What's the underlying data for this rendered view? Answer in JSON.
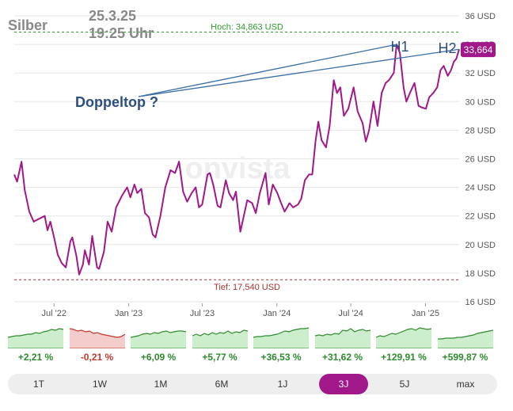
{
  "chart_data": {
    "type": "line",
    "title": "Silber",
    "date_line1": "25.3.25",
    "date_line2": "19:25 Uhr",
    "ylim": [
      16,
      36
    ],
    "y_ticks": [
      16,
      18,
      20,
      22,
      24,
      26,
      28,
      30,
      32,
      34,
      36
    ],
    "y_tick_labels": [
      "16 USD",
      "18 USD",
      "20 USD",
      "22 USD",
      "24 USD",
      "26 USD",
      "28 USD",
      "30 USD",
      "32 USD",
      "34 USD",
      "36 USD"
    ],
    "x_ticks": [
      "2022-07-01",
      "2023-01-01",
      "2023-07-01",
      "2024-01-01",
      "2024-07-01",
      "2025-01-01"
    ],
    "x_tick_labels": [
      "Jul '22",
      "Jan '23",
      "Jul '23",
      "Jan '24",
      "Jul '24",
      "Jan '25"
    ],
    "xlim": [
      "2022-03-25",
      "2025-03-25"
    ],
    "high_label": "Hoch: 34,863 USD",
    "high_value": 34.863,
    "low_label": "Tief: 17,540 USD",
    "low_value": 17.54,
    "last_value": 33.664,
    "last_value_label": "33,664",
    "watermark": "onvista",
    "annotations": [
      {
        "label": "H1",
        "x": "2024-10-22",
        "y": 34.0
      },
      {
        "label": "H2",
        "x": "2025-03-25",
        "y": 33.66
      },
      {
        "label": "Doppeltop ?",
        "x": "2023-01-20",
        "y": 30.5
      }
    ],
    "series": [
      {
        "color": "#a0188a",
        "points": [
          [
            "2022-03-25",
            24.9
          ],
          [
            "2022-04-01",
            24.4
          ],
          [
            "2022-04-12",
            25.8
          ],
          [
            "2022-04-20",
            23.8
          ],
          [
            "2022-05-01",
            22.3
          ],
          [
            "2022-05-12",
            21.6
          ],
          [
            "2022-05-25",
            21.8
          ],
          [
            "2022-06-08",
            22.0
          ],
          [
            "2022-06-15",
            21.0
          ],
          [
            "2022-06-22",
            21.6
          ],
          [
            "2022-07-01",
            20.5
          ],
          [
            "2022-07-10",
            19.3
          ],
          [
            "2022-07-20",
            18.7
          ],
          [
            "2022-07-30",
            18.4
          ],
          [
            "2022-08-10",
            20.2
          ],
          [
            "2022-08-15",
            20.5
          ],
          [
            "2022-08-25",
            19.2
          ],
          [
            "2022-09-01",
            17.9
          ],
          [
            "2022-09-10",
            18.6
          ],
          [
            "2022-09-15",
            19.6
          ],
          [
            "2022-09-25",
            18.6
          ],
          [
            "2022-10-03",
            20.6
          ],
          [
            "2022-10-15",
            18.4
          ],
          [
            "2022-10-20",
            18.3
          ],
          [
            "2022-11-01",
            19.5
          ],
          [
            "2022-11-10",
            21.6
          ],
          [
            "2022-11-20",
            20.9
          ],
          [
            "2022-12-01",
            22.6
          ],
          [
            "2022-12-15",
            23.4
          ],
          [
            "2022-12-28",
            24.0
          ],
          [
            "2023-01-05",
            23.3
          ],
          [
            "2023-01-15",
            24.2
          ],
          [
            "2023-01-22",
            23.6
          ],
          [
            "2023-02-01",
            23.9
          ],
          [
            "2023-02-10",
            22.2
          ],
          [
            "2023-02-20",
            21.9
          ],
          [
            "2023-03-01",
            20.7
          ],
          [
            "2023-03-08",
            20.5
          ],
          [
            "2023-03-20",
            22.0
          ],
          [
            "2023-04-01",
            24.0
          ],
          [
            "2023-04-14",
            25.2
          ],
          [
            "2023-04-25",
            25.0
          ],
          [
            "2023-05-05",
            25.8
          ],
          [
            "2023-05-15",
            23.7
          ],
          [
            "2023-05-25",
            23.0
          ],
          [
            "2023-06-05",
            23.6
          ],
          [
            "2023-06-15",
            24.0
          ],
          [
            "2023-06-23",
            22.6
          ],
          [
            "2023-07-01",
            22.8
          ],
          [
            "2023-07-14",
            24.9
          ],
          [
            "2023-07-20",
            25.0
          ],
          [
            "2023-07-28",
            24.2
          ],
          [
            "2023-08-08",
            22.7
          ],
          [
            "2023-08-15",
            22.6
          ],
          [
            "2023-08-28",
            24.5
          ],
          [
            "2023-09-05",
            23.6
          ],
          [
            "2023-09-15",
            23.1
          ],
          [
            "2023-09-22",
            23.7
          ],
          [
            "2023-10-03",
            20.9
          ],
          [
            "2023-10-10",
            21.8
          ],
          [
            "2023-10-20",
            23.1
          ],
          [
            "2023-11-01",
            22.9
          ],
          [
            "2023-11-10",
            22.2
          ],
          [
            "2023-11-20",
            23.6
          ],
          [
            "2023-12-04",
            25.0
          ],
          [
            "2023-12-12",
            22.8
          ],
          [
            "2023-12-22",
            24.2
          ],
          [
            "2024-01-02",
            23.6
          ],
          [
            "2024-01-10",
            23.0
          ],
          [
            "2024-01-20",
            22.3
          ],
          [
            "2024-02-01",
            22.9
          ],
          [
            "2024-02-10",
            22.6
          ],
          [
            "2024-02-22",
            22.8
          ],
          [
            "2024-03-01",
            23.2
          ],
          [
            "2024-03-10",
            24.5
          ],
          [
            "2024-03-20",
            24.9
          ],
          [
            "2024-03-28",
            24.9
          ],
          [
            "2024-04-05",
            27.2
          ],
          [
            "2024-04-12",
            28.6
          ],
          [
            "2024-04-20",
            27.3
          ],
          [
            "2024-05-01",
            26.8
          ],
          [
            "2024-05-10",
            28.3
          ],
          [
            "2024-05-20",
            31.5
          ],
          [
            "2024-05-28",
            30.6
          ],
          [
            "2024-06-05",
            31.0
          ],
          [
            "2024-06-14",
            29.0
          ],
          [
            "2024-06-25",
            29.5
          ],
          [
            "2024-07-08",
            31.0
          ],
          [
            "2024-07-18",
            29.3
          ],
          [
            "2024-07-30",
            28.5
          ],
          [
            "2024-08-07",
            27.2
          ],
          [
            "2024-08-15",
            28.0
          ],
          [
            "2024-08-26",
            30.0
          ],
          [
            "2024-09-05",
            28.3
          ],
          [
            "2024-09-15",
            30.6
          ],
          [
            "2024-09-25",
            31.3
          ],
          [
            "2024-10-03",
            31.5
          ],
          [
            "2024-10-15",
            32.0
          ],
          [
            "2024-10-22",
            34.0
          ],
          [
            "2024-10-30",
            33.4
          ],
          [
            "2024-11-08",
            31.0
          ],
          [
            "2024-11-15",
            30.0
          ],
          [
            "2024-11-25",
            30.7
          ],
          [
            "2024-12-05",
            31.3
          ],
          [
            "2024-12-15",
            29.7
          ],
          [
            "2024-12-22",
            29.6
          ],
          [
            "2025-01-02",
            29.5
          ],
          [
            "2025-01-10",
            30.3
          ],
          [
            "2025-01-20",
            30.6
          ],
          [
            "2025-01-30",
            31.0
          ],
          [
            "2025-02-07",
            32.2
          ],
          [
            "2025-02-15",
            32.5
          ],
          [
            "2025-02-25",
            31.8
          ],
          [
            "2025-03-05",
            32.2
          ],
          [
            "2025-03-12",
            32.8
          ],
          [
            "2025-03-18",
            33.0
          ],
          [
            "2025-03-25",
            33.664
          ]
        ]
      }
    ]
  },
  "performance": [
    {
      "label": "+2,21 %",
      "trend": "up"
    },
    {
      "label": "-0,21 %",
      "trend": "down"
    },
    {
      "label": "+6,09 %",
      "trend": "up"
    },
    {
      "label": "+5,77 %",
      "trend": "up"
    },
    {
      "label": "+36,53 %",
      "trend": "up"
    },
    {
      "label": "+31,62 %",
      "trend": "up"
    },
    {
      "label": "+129,91 %",
      "trend": "up"
    },
    {
      "label": "+599,87 %",
      "trend": "up"
    }
  ],
  "colors": {
    "line": "#a0188a",
    "trendline": "#3a6ea5",
    "annotation_text": "#2b4f80",
    "high": "#2e9e2e",
    "low": "#a83232",
    "positive": "#2e8b2e",
    "negative": "#c0392b"
  },
  "tabs": [
    {
      "label": "1T",
      "active": false
    },
    {
      "label": "1W",
      "active": false
    },
    {
      "label": "1M",
      "active": false
    },
    {
      "label": "6M",
      "active": false
    },
    {
      "label": "1J",
      "active": false
    },
    {
      "label": "3J",
      "active": true
    },
    {
      "label": "5J",
      "active": false
    },
    {
      "label": "max",
      "active": false
    }
  ]
}
